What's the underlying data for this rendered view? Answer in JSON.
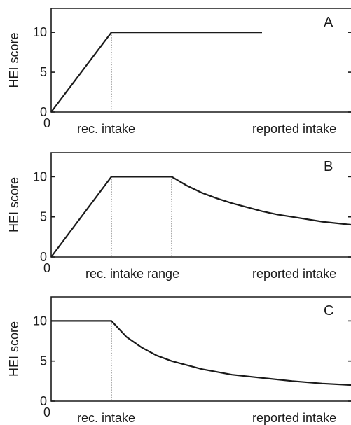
{
  "chart_data": [
    {
      "type": "line",
      "panel": "A",
      "ylabel": "HEI score",
      "ylim": [
        0,
        13
      ],
      "yticks": [
        "0",
        "5",
        "10"
      ],
      "x_origin_label": "0",
      "x_labels": [
        "rec. intake",
        "reported intake"
      ],
      "series": [
        {
          "x": [
            0,
            1,
            1.6,
            2.2,
            2.8,
            3.5
          ],
          "y": [
            0,
            10,
            10,
            10,
            10,
            10
          ]
        }
      ],
      "guides_x": [
        1
      ]
    },
    {
      "type": "line",
      "panel": "B",
      "ylabel": "HEI score",
      "ylim": [
        0,
        13
      ],
      "yticks": [
        "0",
        "5",
        "10"
      ],
      "x_origin_label": "0",
      "x_labels": [
        "rec. intake range",
        "reported intake"
      ],
      "series": [
        {
          "x": [
            0,
            1,
            2,
            2.25,
            2.5,
            2.75,
            3.0,
            3.25,
            3.5,
            3.75,
            4.0,
            4.5,
            5.0
          ],
          "y": [
            0,
            10,
            10,
            8.9,
            8.0,
            7.3,
            6.7,
            6.2,
            5.7,
            5.3,
            5.0,
            4.4,
            4.0
          ]
        }
      ],
      "guides_x": [
        1,
        2
      ]
    },
    {
      "type": "line",
      "panel": "C",
      "ylabel": "HEI score",
      "ylim": [
        0,
        13
      ],
      "yticks": [
        "0",
        "5",
        "10"
      ],
      "x_origin_label": "0",
      "x_labels": [
        "rec. intake",
        "reported intake"
      ],
      "series": [
        {
          "x": [
            0,
            1,
            1.25,
            1.5,
            1.75,
            2.0,
            2.5,
            3.0,
            3.5,
            4.0,
            4.5,
            5.0
          ],
          "y": [
            10,
            10,
            8.0,
            6.7,
            5.7,
            5.0,
            4.0,
            3.3,
            2.9,
            2.5,
            2.2,
            2.0
          ]
        }
      ],
      "guides_x": [
        1
      ]
    }
  ]
}
